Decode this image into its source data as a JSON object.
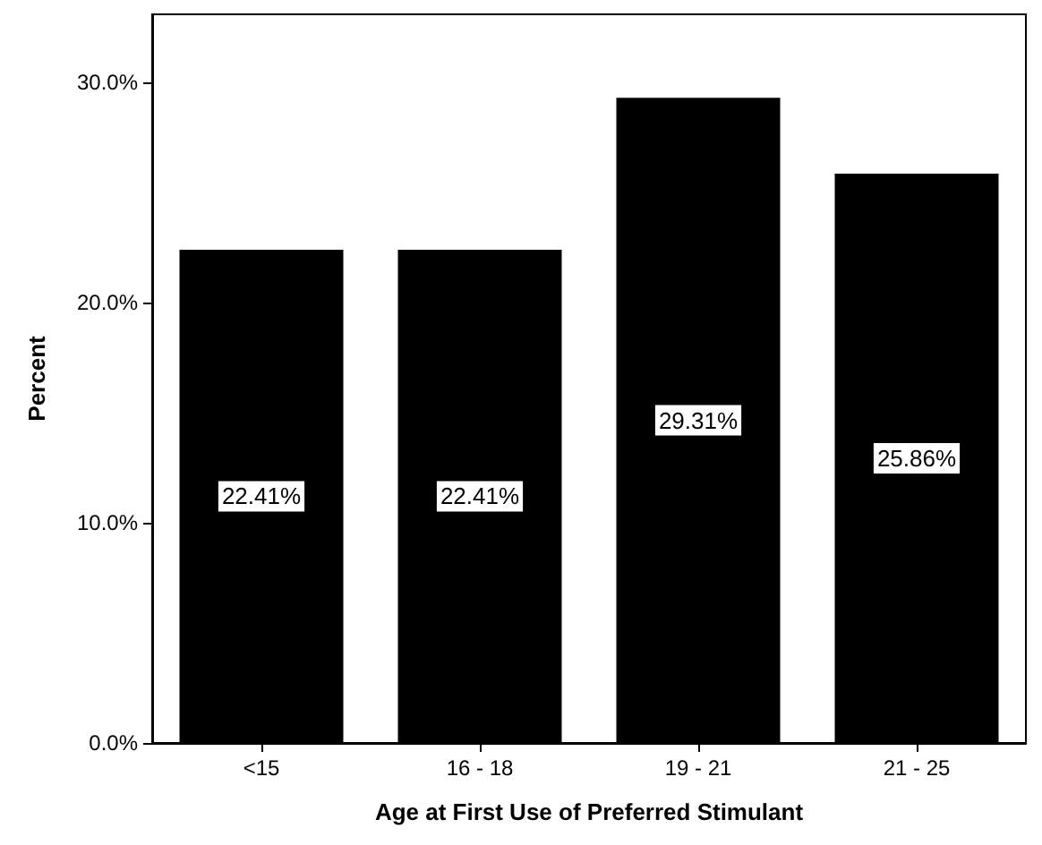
{
  "chart_data": {
    "type": "bar",
    "xlabel": "Age at First Use of Preferred Stimulant",
    "ylabel": "Percent",
    "categories": [
      "<15",
      "16 - 18",
      "19 - 21",
      "21 - 25"
    ],
    "values": [
      22.41,
      22.41,
      29.31,
      25.86
    ],
    "value_labels": [
      "22.41%",
      "22.41%",
      "29.31%",
      "25.86%"
    ],
    "color": "#000000",
    "ylim": [
      0,
      33.1
    ],
    "yticks": [
      {
        "value": 0,
        "label": "0.0%"
      },
      {
        "value": 10,
        "label": "10.0%"
      },
      {
        "value": 20,
        "label": "20.0%"
      },
      {
        "value": 30,
        "label": "30.0%"
      }
    ],
    "grid": false
  }
}
